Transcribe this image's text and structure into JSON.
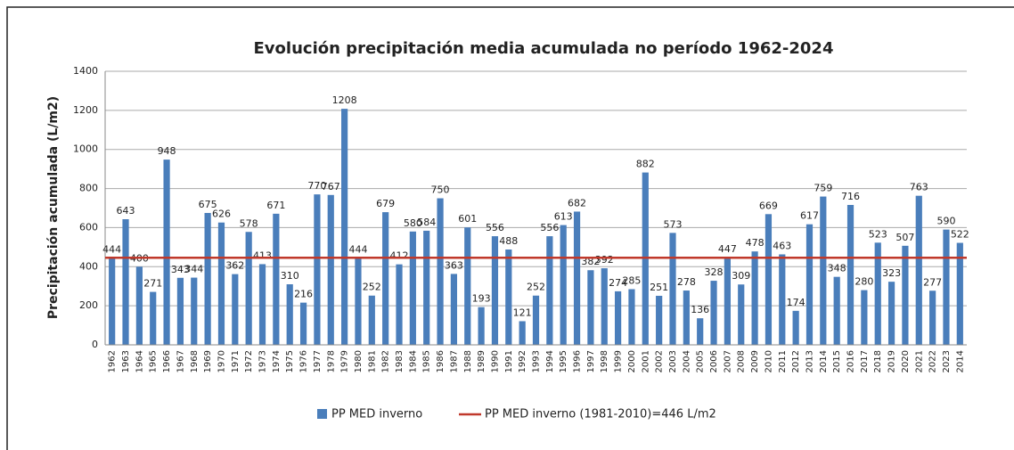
{
  "chart_data": {
    "type": "bar",
    "title": "Evolución precipitación media acumulada no período 1962-2024",
    "y_label": "Precipitación acumulada (L/m2)",
    "categories": [
      "1962",
      "1963",
      "1964",
      "1965",
      "1966",
      "1967",
      "1968",
      "1969",
      "1970",
      "1971",
      "1972",
      "1973",
      "1974",
      "1975",
      "1976",
      "1977",
      "1978",
      "1979",
      "1980",
      "1981",
      "1982",
      "1983",
      "1984",
      "1985",
      "1986",
      "1987",
      "1988",
      "1989",
      "1990",
      "1991",
      "1992",
      "1993",
      "1994",
      "1995",
      "1996",
      "1997",
      "1998",
      "1999",
      "2000",
      "2001",
      "2002",
      "2003",
      "2004",
      "2005",
      "2006",
      "2007",
      "2008",
      "2009",
      "2010",
      "2011",
      "2012",
      "2013",
      "2014",
      "2015",
      "2016",
      "2017",
      "2018",
      "2019",
      "2020",
      "2021",
      "2022",
      "2023",
      "2014"
    ],
    "series": [
      {
        "name": "PP MED inverno",
        "color": "#4a7ebb",
        "values": [
          444,
          643,
          400,
          271,
          948,
          343,
          344,
          675,
          626,
          362,
          578,
          413,
          671,
          310,
          216,
          770,
          767,
          1208,
          444,
          252,
          679,
          412,
          580,
          584,
          750,
          363,
          601,
          193,
          556,
          488,
          121,
          252,
          556,
          613,
          682,
          382,
          392,
          274,
          285,
          882,
          251,
          573,
          278,
          136,
          328,
          447,
          309,
          478,
          669,
          463,
          174,
          617,
          759,
          348,
          716,
          280,
          523,
          323,
          507,
          763,
          277,
          590,
          522
        ]
      }
    ],
    "reference_line": {
      "name": "PP MED inverno (1981-2010)=446 L/m2",
      "value": 446,
      "color": "#c0392b"
    },
    "ylim": [
      0,
      1400
    ],
    "yticks": [
      0,
      200,
      400,
      600,
      800,
      1000,
      1200,
      1400
    ],
    "grid": true
  }
}
